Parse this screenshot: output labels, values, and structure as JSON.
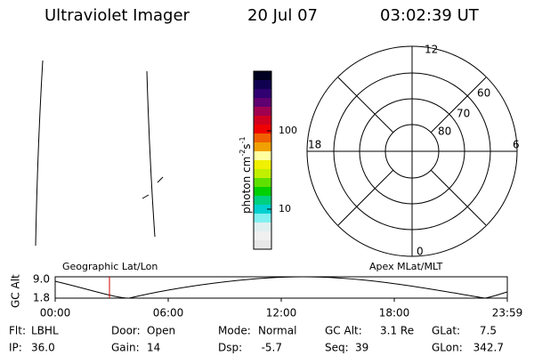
{
  "header": {
    "title": "Ultraviolet Imager",
    "date": "20 Jul 07",
    "time": "03:02:39 UT"
  },
  "colorbar": {
    "ticks": [
      "100",
      "10"
    ],
    "label": [
      "photon cm",
      "-2",
      "s",
      "-1"
    ]
  },
  "polar": {
    "hour_labels": [
      "12",
      "18",
      "6",
      "0"
    ],
    "lat_labels": [
      "60",
      "70",
      "80"
    ]
  },
  "orbit": {
    "axis_label": "GC Alt",
    "yticks": [
      "9.0",
      "1.8"
    ],
    "left_title": "Geographic Lat/Lon",
    "right_title": "Apex MLat/MLT",
    "xticks": [
      "00:00",
      "06:00",
      "12:00",
      "18:00",
      "23:59"
    ]
  },
  "info": [
    [
      {
        "label": "Flt:",
        "value": "LBHL"
      },
      {
        "label": "Door:",
        "value": "Open"
      },
      {
        "label": "Mode:",
        "value": "Normal"
      },
      {
        "label": "GC Alt:",
        "value": "3.1 Re"
      },
      {
        "label": "GLat:",
        "value": "7.5"
      }
    ],
    [
      {
        "label": "IP:",
        "value": "36.0"
      },
      {
        "label": "Gain:",
        "value": "14"
      },
      {
        "label": "Dsp:",
        "value": "-5.7"
      },
      {
        "label": "Seq:",
        "value": "39"
      },
      {
        "label": "GLon:",
        "value": "342.7"
      }
    ]
  ]
}
